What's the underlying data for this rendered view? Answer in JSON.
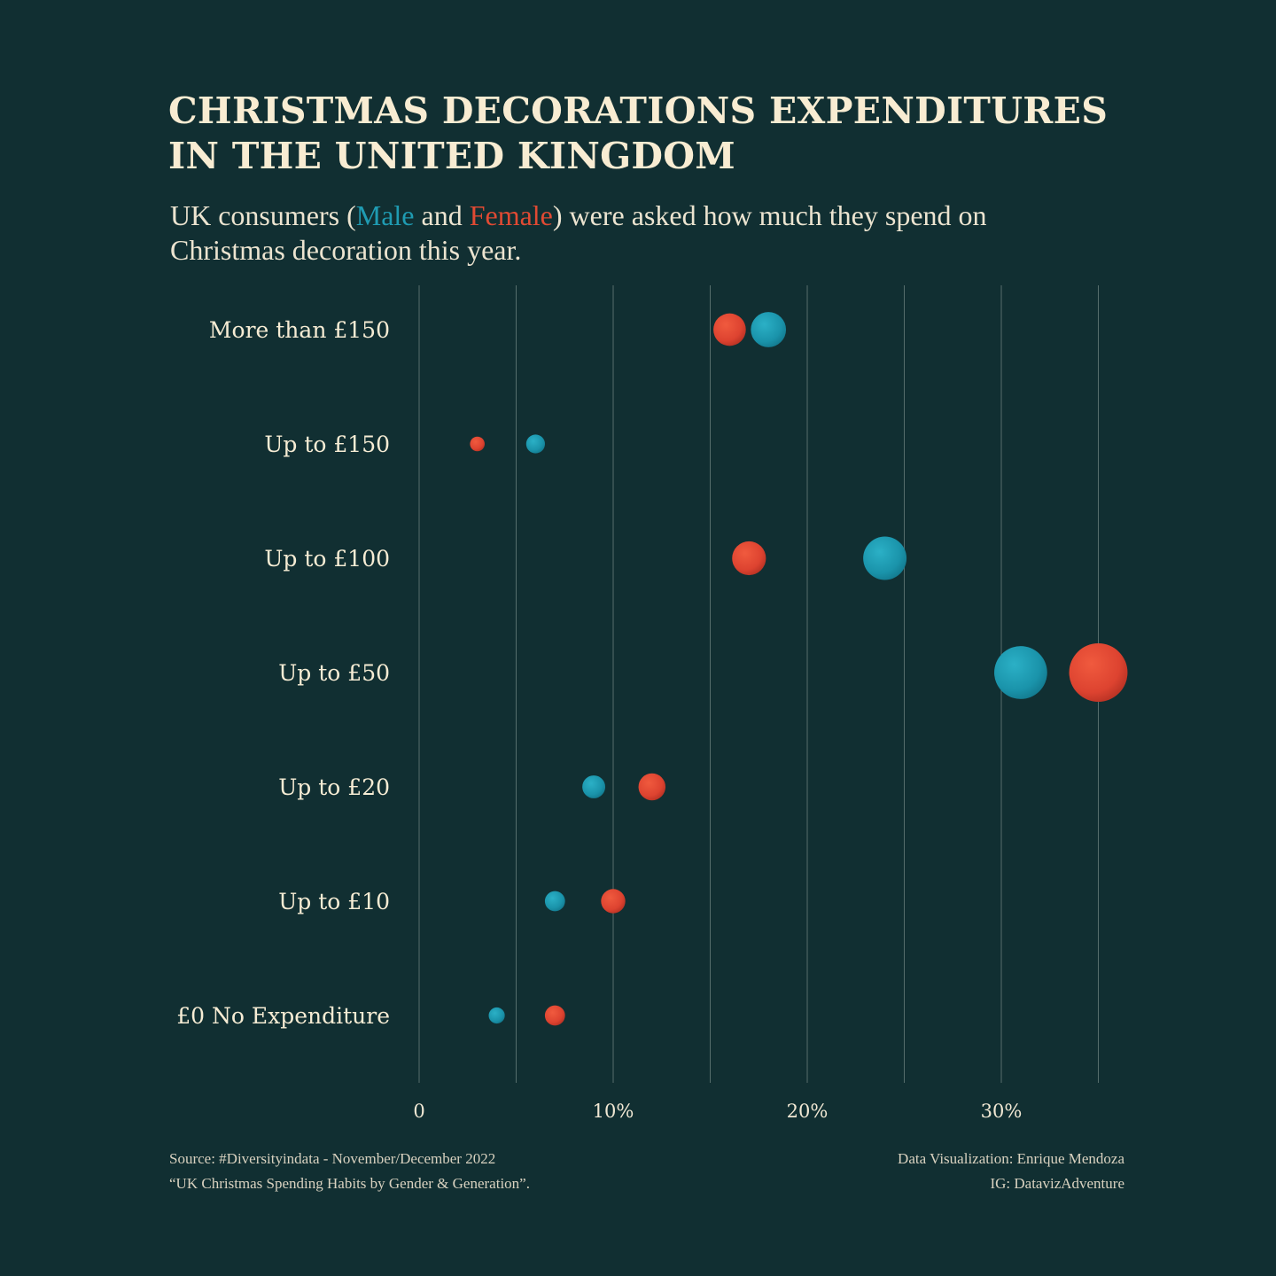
{
  "title_lines": [
    "CHRISTMAS DECORATIONS EXPENDITURES",
    "IN THE UNITED KINGDOM"
  ],
  "subtitle": {
    "line1_pre": "UK consumers (",
    "male_word": "Male",
    "line1_mid": " and ",
    "female_word": "Female",
    "line1_post": ") were asked how much they spend on",
    "line2": "Christmas decoration this year."
  },
  "colors": {
    "background": "#112f32",
    "male": "#1f9bb2",
    "female": "#e04a33",
    "text": "#f6ecd4",
    "grid": "#8fa39c"
  },
  "chart_data": {
    "type": "dumbbell",
    "xlim": [
      0,
      35
    ],
    "xticks": [
      0,
      10,
      20,
      30
    ],
    "xtick_labels": [
      "0",
      "10%",
      "20%",
      "30%"
    ],
    "grid": true,
    "categories": [
      "More than £150",
      "Up to £150",
      "Up to £100",
      "Up to £50",
      "Up to £20",
      "Up to £10",
      "£0 No Expenditure"
    ],
    "series": [
      {
        "name": "Male",
        "values": [
          18,
          6,
          24,
          31,
          9,
          7,
          4
        ]
      },
      {
        "name": "Female",
        "values": [
          16,
          3,
          17,
          35,
          12,
          10,
          7
        ]
      }
    ]
  },
  "footer": {
    "source_line1": "Source:  #Diversityindata - November/December 2022",
    "source_line2": "“UK Christmas Spending Habits by Gender & Generation”.",
    "credit_line1": "Data Visualization: Enrique Mendoza",
    "credit_line2": "IG: DatavizAdventure"
  }
}
